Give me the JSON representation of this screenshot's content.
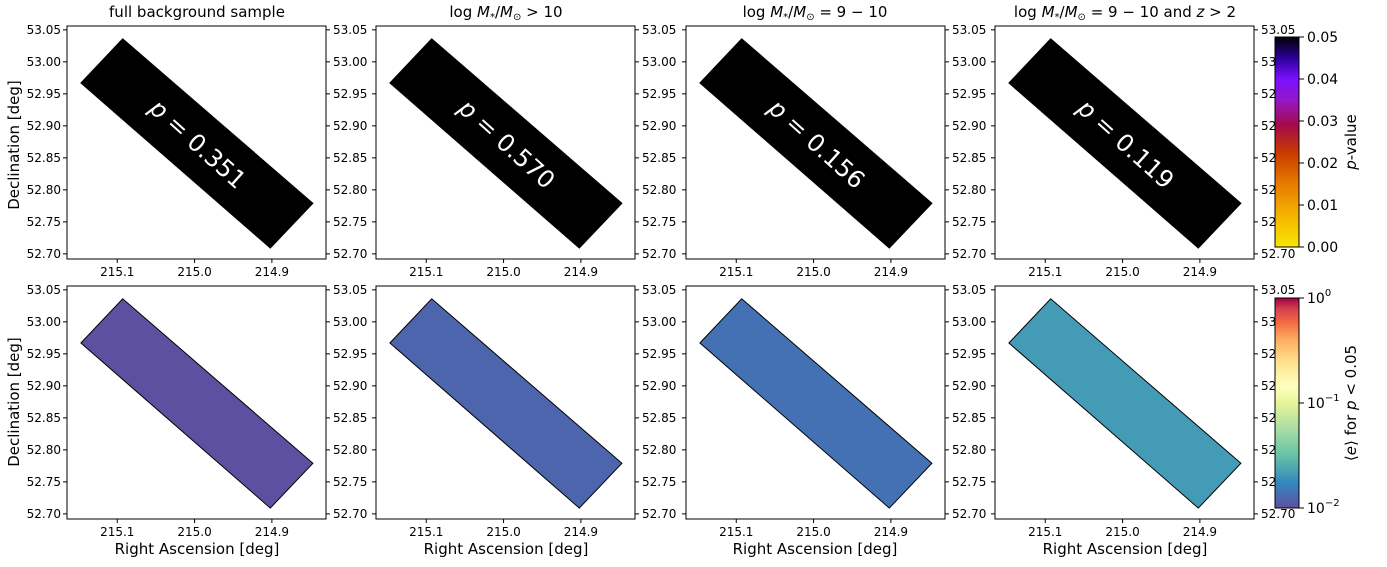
{
  "panel_titles": [
    "full background sample",
    "log M*/M⊙ > 10",
    "log M*/M⊙ = 9 − 10",
    "log M*/M⊙ = 9 − 10 and z > 2"
  ],
  "xlabel": "Right Ascension [deg]",
  "ylabel": "Declination [deg]",
  "cbar_top": {
    "label": "p-value",
    "ticks": [
      "0.00",
      "0.01",
      "0.02",
      "0.03",
      "0.04",
      "0.05"
    ]
  },
  "cbar_bottom": {
    "label": "⟨e⟩ for p < 0.05",
    "tick_top": "10",
    "tick_top_exp": "0",
    "tick_mid": "10",
    "tick_mid_exp": "−1",
    "tick_bot": "10",
    "tick_bot_exp": "−2"
  },
  "colors": {
    "top_fill": "#000000",
    "bottom_fills": [
      "#5e50a1",
      "#4d65ad",
      "#4371b3",
      "#439bb5"
    ]
  },
  "chart_data": [
    {
      "type": "map",
      "row": "p-value",
      "xlabel": "",
      "ylabel": "Declination [deg]",
      "xlim": [
        215.165,
        214.83
      ],
      "ylim": [
        52.692,
        53.056
      ],
      "xticks": [
        215.1,
        215.0,
        214.9
      ],
      "xticklabels": [
        "215.1",
        "215.0",
        "214.9"
      ],
      "yticks": [
        52.7,
        52.75,
        52.8,
        52.85,
        52.9,
        52.95,
        53.0,
        53.05
      ],
      "yticklabels": [
        "52.70",
        "52.75",
        "52.80",
        "52.85",
        "52.90",
        "52.95",
        "53.00",
        "53.05"
      ],
      "region_polygon": [
        [
          215.147,
          52.967
        ],
        [
          215.093,
          53.036
        ],
        [
          214.847,
          52.779
        ],
        [
          214.902,
          52.709
        ]
      ],
      "panels": [
        {
          "title": "full background sample",
          "p_label": "p = 0.351",
          "p_value": 0.351
        },
        {
          "title": "log M*/M⊙ > 10",
          "p_label": "p = 0.570",
          "p_value": 0.57
        },
        {
          "title": "log M*/M⊙ = 9 − 10",
          "p_label": "p = 0.156",
          "p_value": 0.156
        },
        {
          "title": "log M*/M⊙ = 9 − 10 and z > 2",
          "p_label": "p = 0.119",
          "p_value": 0.119
        }
      ],
      "colorbar": {
        "label": "p-value",
        "range": [
          0.0,
          0.05
        ],
        "colormap": "gnuplot2_r"
      }
    },
    {
      "type": "map",
      "row": "mean e for p < 0.05",
      "xlabel": "Right Ascension [deg]",
      "ylabel": "Declination [deg]",
      "xlim": [
        215.165,
        214.83
      ],
      "ylim": [
        52.692,
        53.056
      ],
      "xticks": [
        215.1,
        215.0,
        214.9
      ],
      "xticklabels": [
        "215.1",
        "215.0",
        "214.9"
      ],
      "yticks": [
        52.7,
        52.75,
        52.8,
        52.85,
        52.9,
        52.95,
        53.0,
        53.05
      ],
      "yticklabels": [
        "52.70",
        "52.75",
        "52.80",
        "52.85",
        "52.90",
        "52.95",
        "53.00",
        "53.05"
      ],
      "region_polygon": [
        [
          215.147,
          52.967
        ],
        [
          215.093,
          53.036
        ],
        [
          214.847,
          52.779
        ],
        [
          214.902,
          52.709
        ]
      ],
      "panel_fill_colors": [
        "#5e50a1",
        "#4d65ad",
        "#4371b3",
        "#439bb5"
      ],
      "colorbar": {
        "label": "⟨e⟩ for p < 0.05",
        "scale": "log",
        "range": [
          0.01,
          1
        ],
        "colormap": "Spectral_r"
      }
    }
  ]
}
